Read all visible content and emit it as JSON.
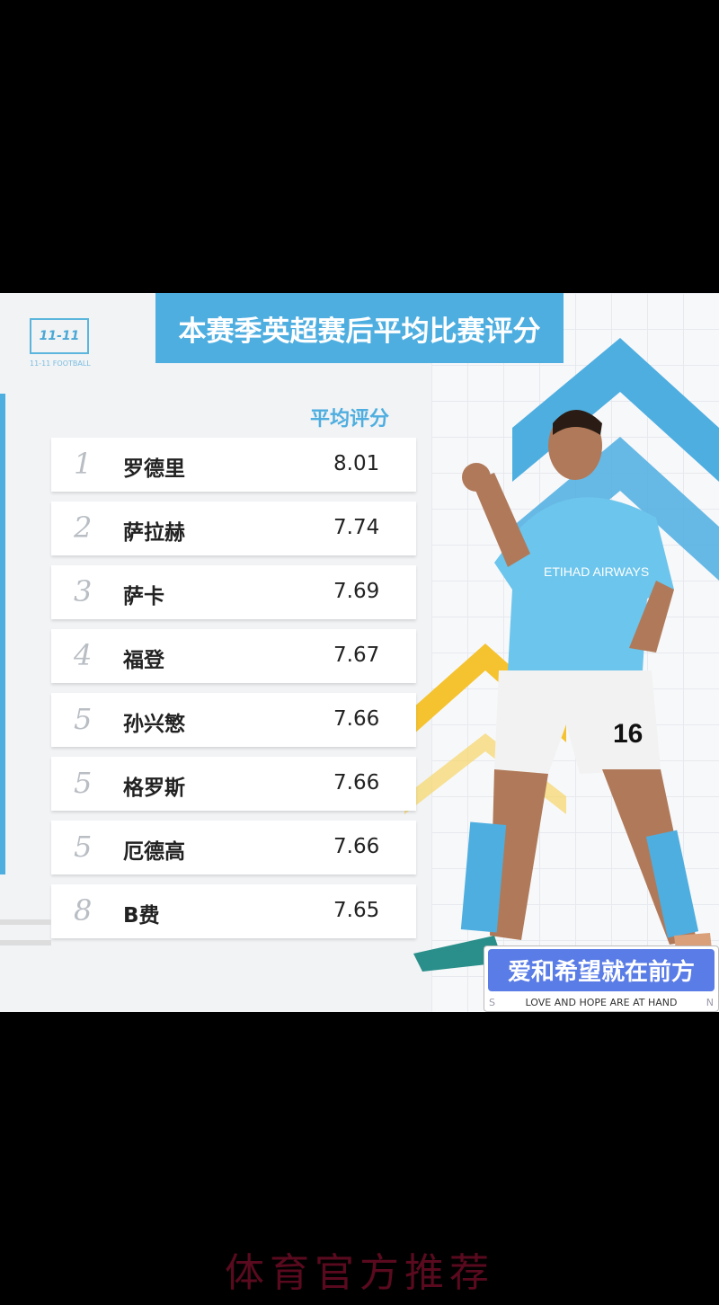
{
  "logo": {
    "text": "11-11",
    "subtitle": "11-11 FOOTBALL"
  },
  "title": "本赛季英超赛后平均比赛评分",
  "column_header": "平均评分",
  "rankings": [
    {
      "rank": "1",
      "name": "罗德里",
      "score": "8.01"
    },
    {
      "rank": "2",
      "name": "萨拉赫",
      "score": "7.74"
    },
    {
      "rank": "3",
      "name": "萨卡",
      "score": "7.69"
    },
    {
      "rank": "4",
      "name": "福登",
      "score": "7.67"
    },
    {
      "rank": "5",
      "name": "孙兴慜",
      "score": "7.66"
    },
    {
      "rank": "5",
      "name": "格罗斯",
      "score": "7.66"
    },
    {
      "rank": "5",
      "name": "厄德高",
      "score": "7.66"
    },
    {
      "rank": "8",
      "name": "B费",
      "score": "7.65"
    }
  ],
  "player": {
    "sponsor": "ETIHAD AIRWAYS",
    "number": "16"
  },
  "banner": {
    "main": "爱和希望就在前方",
    "sub": "LOVE AND HOPE ARE AT HAND",
    "left": "S",
    "right": "N"
  },
  "footer": "体育官方推荐",
  "colors": {
    "accent": "#4eaee0",
    "banner": "#5a7ce6",
    "chevron_yellow": "#f5c330"
  }
}
